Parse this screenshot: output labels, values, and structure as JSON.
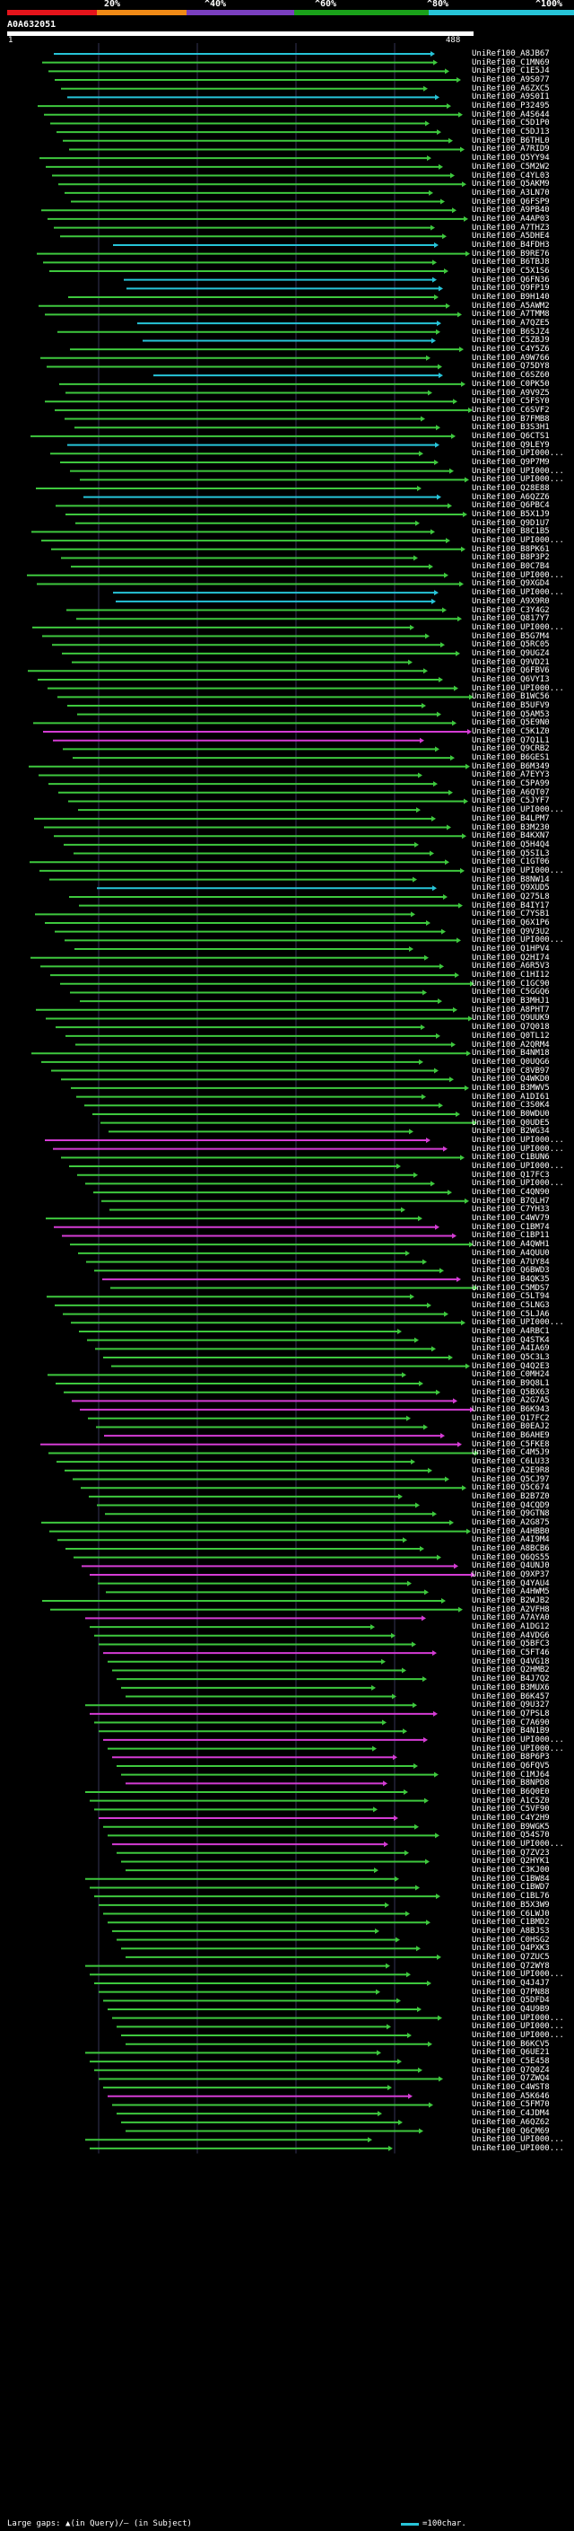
{
  "header": {
    "scale_labels": [
      "20%",
      "^40%",
      "^60%",
      "^80%",
      "^100%"
    ],
    "band_colors": [
      "#e5141b",
      "#f08a16",
      "#7a3fbf",
      "#1aa11a",
      "#27c4d8"
    ],
    "query_id": "A0A632051",
    "query_start": "1",
    "query_end": "488"
  },
  "colors": {
    "green": "#3ec83e",
    "magenta": "#d43cd4",
    "cyan": "#27c4d8"
  },
  "hits": [
    {
      "label": "UniRef100_A8JB67",
      "color": "cyan"
    },
    {
      "label": "UniRef100_C1MN69",
      "color": "green"
    },
    {
      "label": "UniRef100_C1E5J4",
      "color": "green"
    },
    {
      "label": "UniRef100_A9S077",
      "color": "green"
    },
    {
      "label": "UniRef100_A6ZXC5",
      "color": "green"
    },
    {
      "label": "UniRef100_A9S0I1",
      "color": "cyan"
    },
    {
      "label": "UniRef100_P32495",
      "color": "green"
    },
    {
      "label": "UniRef100_A4S644",
      "color": "green"
    },
    {
      "label": "UniRef100_C5D1P0",
      "color": "green"
    },
    {
      "label": "UniRef100_C5DJ13",
      "color": "green"
    },
    {
      "label": "UniRef100_B6THL0",
      "color": "green"
    },
    {
      "label": "UniRef100_A7RID9",
      "color": "green"
    },
    {
      "label": "UniRef100_Q5YY94",
      "color": "green"
    },
    {
      "label": "UniRef100_C5M2W2",
      "color": "green"
    },
    {
      "label": "UniRef100_C4YL03",
      "color": "green"
    },
    {
      "label": "UniRef100_Q5AKM9",
      "color": "green"
    },
    {
      "label": "UniRef100_A3LN70",
      "color": "green"
    },
    {
      "label": "UniRef100_Q6FSP9",
      "color": "green"
    },
    {
      "label": "UniRef100_A9PB40",
      "color": "green"
    },
    {
      "label": "UniRef100_A4AP03",
      "color": "green"
    },
    {
      "label": "UniRef100_A7THZ3",
      "color": "green"
    },
    {
      "label": "UniRef100_A5DHE4",
      "color": "green"
    },
    {
      "label": "UniRef100_B4FDH3",
      "color": "cyan"
    },
    {
      "label": "UniRef100_B9RE76",
      "color": "green"
    },
    {
      "label": "UniRef100_B6TBJ8",
      "color": "green"
    },
    {
      "label": "UniRef100_C5X1S6",
      "color": "green"
    },
    {
      "label": "UniRef100_Q6FN36",
      "color": "cyan"
    },
    {
      "label": "UniRef100_Q9FP19",
      "color": "cyan"
    },
    {
      "label": "UniRef100_B9H140",
      "color": "green"
    },
    {
      "label": "UniRef100_A5AWM2",
      "color": "green"
    },
    {
      "label": "UniRef100_A7TMM8",
      "color": "green"
    },
    {
      "label": "UniRef100_A7QZE5",
      "color": "cyan"
    },
    {
      "label": "UniRef100_B6SJZ4",
      "color": "green"
    },
    {
      "label": "UniRef100_C5ZBJ9",
      "color": "cyan"
    },
    {
      "label": "UniRef100_C4Y5Z6",
      "color": "green"
    },
    {
      "label": "UniRef100_A9W766",
      "color": "green"
    },
    {
      "label": "UniRef100_Q75DY8",
      "color": "green"
    },
    {
      "label": "UniRef100_C6SZ60",
      "color": "cyan"
    },
    {
      "label": "UniRef100_C0PK50",
      "color": "green"
    },
    {
      "label": "UniRef100_A9V9Z5",
      "color": "green"
    },
    {
      "label": "UniRef100_C5FSY0",
      "color": "green"
    },
    {
      "label": "UniRef100_C6SVF2",
      "color": "green"
    },
    {
      "label": "UniRef100_B7FMB8",
      "color": "green"
    },
    {
      "label": "UniRef100_B3S3H1",
      "color": "green"
    },
    {
      "label": "UniRef100_Q6CTS1",
      "color": "green"
    },
    {
      "label": "UniRef100_Q9LEY9",
      "color": "cyan"
    },
    {
      "label": "UniRef100_UPI000...",
      "color": "green"
    },
    {
      "label": "UniRef100_Q9P7M9",
      "color": "green"
    },
    {
      "label": "UniRef100_UPI000...",
      "color": "green"
    },
    {
      "label": "UniRef100_UPI000...",
      "color": "green"
    },
    {
      "label": "UniRef100_Q28E88",
      "color": "green"
    },
    {
      "label": "UniRef100_A6QZZ6",
      "color": "cyan"
    },
    {
      "label": "UniRef100_Q6PBC4",
      "color": "green"
    },
    {
      "label": "UniRef100_B5X1J9",
      "color": "green"
    },
    {
      "label": "UniRef100_Q9D1U7",
      "color": "green"
    },
    {
      "label": "UniRef100_B8C1B5",
      "color": "green"
    },
    {
      "label": "UniRef100_UPI000...",
      "color": "green"
    },
    {
      "label": "UniRef100_B8PK61",
      "color": "green"
    },
    {
      "label": "UniRef100_B8P3P2",
      "color": "green"
    },
    {
      "label": "UniRef100_B0C7B4",
      "color": "green"
    },
    {
      "label": "UniRef100_UPI000...",
      "color": "green"
    },
    {
      "label": "UniRef100_Q9XGD4",
      "color": "green"
    },
    {
      "label": "UniRef100_UPI000...",
      "color": "cyan"
    },
    {
      "label": "UniRef100_A9X9R0",
      "color": "cyan"
    },
    {
      "label": "UniRef100_C3Y4G2",
      "color": "green"
    },
    {
      "label": "UniRef100_Q817Y7",
      "color": "green"
    },
    {
      "label": "UniRef100_UPI000...",
      "color": "green"
    },
    {
      "label": "UniRef100_B5G7M4",
      "color": "green"
    },
    {
      "label": "UniRef100_Q5RC05",
      "color": "green"
    },
    {
      "label": "UniRef100_Q9UGZ4",
      "color": "green"
    },
    {
      "label": "UniRef100_Q9VD21",
      "color": "green"
    },
    {
      "label": "UniRef100_Q6FBV6",
      "color": "green"
    },
    {
      "label": "UniRef100_Q6VYI3",
      "color": "green"
    },
    {
      "label": "UniRef100_UPI000...",
      "color": "green"
    },
    {
      "label": "UniRef100_B1WC56",
      "color": "green"
    },
    {
      "label": "UniRef100_B5UFV9",
      "color": "green"
    },
    {
      "label": "UniRef100_Q5AM53",
      "color": "green"
    },
    {
      "label": "UniRef100_Q5E9N0",
      "color": "green"
    },
    {
      "label": "UniRef100_C5K1Z0",
      "color": "magenta"
    },
    {
      "label": "UniRef100_Q7Q1L1",
      "color": "magenta"
    },
    {
      "label": "UniRef100_Q9CRB2",
      "color": "green"
    },
    {
      "label": "UniRef100_B6GES1",
      "color": "green"
    },
    {
      "label": "UniRef100_B6M349",
      "color": "green"
    },
    {
      "label": "UniRef100_A7EYY3",
      "color": "green"
    },
    {
      "label": "UniRef100_C5PA99",
      "color": "green"
    },
    {
      "label": "UniRef100_A6QT07",
      "color": "green"
    },
    {
      "label": "UniRef100_C5JYF7",
      "color": "green"
    },
    {
      "label": "UniRef100_UPI000...",
      "color": "green"
    },
    {
      "label": "UniRef100_B4LPM7",
      "color": "green"
    },
    {
      "label": "UniRef100_B3M230",
      "color": "green"
    },
    {
      "label": "UniRef100_B4KXN7",
      "color": "green"
    },
    {
      "label": "UniRef100_Q5H4Q4",
      "color": "green"
    },
    {
      "label": "UniRef100_Q5SIL3",
      "color": "green"
    },
    {
      "label": "UniRef100_C1GT06",
      "color": "green"
    },
    {
      "label": "UniRef100_UPI000...",
      "color": "green"
    },
    {
      "label": "UniRef100_B8NW14",
      "color": "green"
    },
    {
      "label": "UniRef100_Q9XUD5",
      "color": "cyan"
    },
    {
      "label": "UniRef100_Q275L8",
      "color": "green"
    },
    {
      "label": "UniRef100_B4IY17",
      "color": "green"
    },
    {
      "label": "UniRef100_C7YSB1",
      "color": "green"
    },
    {
      "label": "UniRef100_Q6X1P6",
      "color": "green"
    },
    {
      "label": "UniRef100_Q9V3U2",
      "color": "green"
    },
    {
      "label": "UniRef100_UPI000...",
      "color": "green"
    },
    {
      "label": "UniRef100_Q1HPV4",
      "color": "green"
    },
    {
      "label": "UniRef100_Q2HI74",
      "color": "green"
    },
    {
      "label": "UniRef100_A6R5V3",
      "color": "green"
    },
    {
      "label": "UniRef100_C1HI12",
      "color": "green"
    },
    {
      "label": "UniRef100_C1GC90",
      "color": "green"
    },
    {
      "label": "UniRef100_C5GGQ6",
      "color": "green"
    },
    {
      "label": "UniRef100_B3MHJ1",
      "color": "green"
    },
    {
      "label": "UniRef100_A8PHT7",
      "color": "green"
    },
    {
      "label": "UniRef100_Q9UUK9",
      "color": "green"
    },
    {
      "label": "UniRef100_Q7Q018",
      "color": "green"
    },
    {
      "label": "UniRef100_Q0TL12",
      "color": "green"
    },
    {
      "label": "UniRef100_A2QRM4",
      "color": "green"
    },
    {
      "label": "UniRef100_B4NM18",
      "color": "green"
    },
    {
      "label": "UniRef100_Q0UQG6",
      "color": "green"
    },
    {
      "label": "UniRef100_C8VB97",
      "color": "green"
    },
    {
      "label": "UniRef100_Q4WKD0",
      "color": "green"
    },
    {
      "label": "UniRef100_B3MWV5",
      "color": "green"
    },
    {
      "label": "UniRef100_A1DI61",
      "color": "green"
    },
    {
      "label": "UniRef100_C3S0K4",
      "color": "green"
    },
    {
      "label": "UniRef100_B0WDU0",
      "color": "green"
    },
    {
      "label": "UniRef100_Q0UDE5",
      "color": "green"
    },
    {
      "label": "UniRef100_B2WG34",
      "color": "green"
    },
    {
      "label": "UniRef100_UPI000...",
      "color": "magenta"
    },
    {
      "label": "UniRef100_UPI000...",
      "color": "magenta"
    },
    {
      "label": "UniRef100_C1BUN6",
      "color": "green"
    },
    {
      "label": "UniRef100_UPI000...",
      "color": "green"
    },
    {
      "label": "UniRef100_Q17FC3",
      "color": "green"
    },
    {
      "label": "UniRef100_UPI000...",
      "color": "green"
    },
    {
      "label": "UniRef100_C4QN90",
      "color": "green"
    },
    {
      "label": "UniRef100_B7QLH7",
      "color": "green"
    },
    {
      "label": "UniRef100_C7YH33",
      "color": "green"
    },
    {
      "label": "UniRef100_C4WV79",
      "color": "green"
    },
    {
      "label": "UniRef100_C1BM74",
      "color": "magenta"
    },
    {
      "label": "UniRef100_C1BP11",
      "color": "magenta"
    },
    {
      "label": "UniRef100_A4QWH1",
      "color": "green"
    },
    {
      "label": "UniRef100_A4QUU0",
      "color": "green"
    },
    {
      "label": "UniRef100_A7UY84",
      "color": "green"
    },
    {
      "label": "UniRef100_Q6BWD3",
      "color": "green"
    },
    {
      "label": "UniRef100_B4QK35",
      "color": "magenta"
    },
    {
      "label": "UniRef100_C5MDS7",
      "color": "green"
    },
    {
      "label": "UniRef100_C5LT94",
      "color": "green"
    },
    {
      "label": "UniRef100_C5LNG3",
      "color": "green"
    },
    {
      "label": "UniRef100_C5LJA6",
      "color": "green"
    },
    {
      "label": "UniRef100_UPI000...",
      "color": "green"
    },
    {
      "label": "UniRef100_A4RBC1",
      "color": "green"
    },
    {
      "label": "UniRef100_Q4STK4",
      "color": "green"
    },
    {
      "label": "UniRef100_A4IA69",
      "color": "green"
    },
    {
      "label": "UniRef100_Q5C3L3",
      "color": "green"
    },
    {
      "label": "UniRef100_Q4Q2E3",
      "color": "green"
    },
    {
      "label": "UniRef100_C0MH24",
      "color": "green"
    },
    {
      "label": "UniRef100_B9Q8L1",
      "color": "green"
    },
    {
      "label": "UniRef100_Q5BX63",
      "color": "green"
    },
    {
      "label": "UniRef100_A2G7A5",
      "color": "magenta"
    },
    {
      "label": "UniRef100_B6K943",
      "color": "magenta"
    },
    {
      "label": "UniRef100_Q17FC2",
      "color": "green"
    },
    {
      "label": "UniRef100_B0EAJ2",
      "color": "green"
    },
    {
      "label": "UniRef100_B6AHE9",
      "color": "magenta"
    },
    {
      "label": "UniRef100_C5FKE8",
      "color": "magenta"
    },
    {
      "label": "UniRef100_C4M5J9",
      "color": "green"
    },
    {
      "label": "UniRef100_C6LU33",
      "color": "green"
    },
    {
      "label": "UniRef100_A2E9R8",
      "color": "green"
    },
    {
      "label": "UniRef100_Q5CJ97",
      "color": "green"
    },
    {
      "label": "UniRef100_Q5C674",
      "color": "green"
    },
    {
      "label": "UniRef100_B2B7Z0",
      "color": "green"
    },
    {
      "label": "UniRef100_Q4CQD9",
      "color": "green"
    },
    {
      "label": "UniRef100_Q9GTN8",
      "color": "green"
    },
    {
      "label": "UniRef100_A2G875",
      "color": "green"
    },
    {
      "label": "UniRef100_A4HBB0",
      "color": "green"
    },
    {
      "label": "UniRef100_A4I9M4",
      "color": "green"
    },
    {
      "label": "UniRef100_A8BCB6",
      "color": "green"
    },
    {
      "label": "UniRef100_Q6QS55",
      "color": "green"
    },
    {
      "label": "UniRef100_Q4UNJ0",
      "color": "magenta"
    },
    {
      "label": "UniRef100_Q9XP37",
      "color": "magenta"
    },
    {
      "label": "UniRef100_Q4YAU4",
      "color": "green"
    },
    {
      "label": "UniRef100_A4HWM5",
      "color": "green"
    },
    {
      "label": "UniRef100_B2WJB2",
      "color": "green"
    },
    {
      "label": "UniRef100_A2VFH8",
      "color": "green"
    },
    {
      "label": "UniRef100_A7AYA0",
      "color": "magenta"
    },
    {
      "label": "UniRef100_A1DG12",
      "color": "green"
    },
    {
      "label": "UniRef100_A4VDG6",
      "color": "green"
    },
    {
      "label": "UniRef100_Q5BFC3",
      "color": "green"
    },
    {
      "label": "UniRef100_C5FT46",
      "color": "magenta"
    },
    {
      "label": "UniRef100_Q4VG18",
      "color": "green"
    },
    {
      "label": "UniRef100_Q2HMB2",
      "color": "green"
    },
    {
      "label": "UniRef100_B4J7Q2",
      "color": "green"
    },
    {
      "label": "UniRef100_B3MUX6",
      "color": "green"
    },
    {
      "label": "UniRef100_B6K457",
      "color": "green"
    },
    {
      "label": "UniRef100_Q9U327",
      "color": "green"
    },
    {
      "label": "UniRef100_Q7PSL8",
      "color": "magenta"
    },
    {
      "label": "UniRef100_C7A690",
      "color": "green"
    },
    {
      "label": "UniRef100_B4N1B9",
      "color": "green"
    },
    {
      "label": "UniRef100_UPI000...",
      "color": "magenta"
    },
    {
      "label": "UniRef100_UPI000...",
      "color": "green"
    },
    {
      "label": "UniRef100_B8P6P3",
      "color": "magenta"
    },
    {
      "label": "UniRef100_Q6FQV5",
      "color": "green"
    },
    {
      "label": "UniRef100_C1MJ64",
      "color": "green"
    },
    {
      "label": "UniRef100_B8NPD8",
      "color": "magenta"
    },
    {
      "label": "UniRef100_B6Q0E0",
      "color": "green"
    },
    {
      "label": "UniRef100_A1C5Z0",
      "color": "green"
    },
    {
      "label": "UniRef100_C5VF90",
      "color": "green"
    },
    {
      "label": "UniRef100_C4Y2H9",
      "color": "magenta"
    },
    {
      "label": "UniRef100_B9WGK5",
      "color": "green"
    },
    {
      "label": "UniRef100_Q54S70",
      "color": "green"
    },
    {
      "label": "UniRef100_UPI000...",
      "color": "magenta"
    },
    {
      "label": "UniRef100_Q7ZV23",
      "color": "green"
    },
    {
      "label": "UniRef100_Q2HYK1",
      "color": "green"
    },
    {
      "label": "UniRef100_C3KJ00",
      "color": "green"
    },
    {
      "label": "UniRef100_C1BW84",
      "color": "green"
    },
    {
      "label": "UniRef100_C1BWD7",
      "color": "green"
    },
    {
      "label": "UniRef100_C1BL76",
      "color": "green"
    },
    {
      "label": "UniRef100_B5X3W9",
      "color": "green"
    },
    {
      "label": "UniRef100_C6LWJ0",
      "color": "green"
    },
    {
      "label": "UniRef100_C1BMD2",
      "color": "green"
    },
    {
      "label": "UniRef100_A8BJS3",
      "color": "green"
    },
    {
      "label": "UniRef100_C0HSG2",
      "color": "green"
    },
    {
      "label": "UniRef100_Q4PXK3",
      "color": "green"
    },
    {
      "label": "UniRef100_Q7ZUC5",
      "color": "green"
    },
    {
      "label": "UniRef100_Q72WY8",
      "color": "green"
    },
    {
      "label": "UniRef100_UPI000...",
      "color": "green"
    },
    {
      "label": "UniRef100_Q4J4J7",
      "color": "green"
    },
    {
      "label": "UniRef100_Q7PN88",
      "color": "green"
    },
    {
      "label": "UniRef100_Q5DFD4",
      "color": "green"
    },
    {
      "label": "UniRef100_Q4U9B9",
      "color": "green"
    },
    {
      "label": "UniRef100_UPI000...",
      "color": "green"
    },
    {
      "label": "UniRef100_UPI000...",
      "color": "green"
    },
    {
      "label": "UniRef100_UPI000...",
      "color": "green"
    },
    {
      "label": "UniRef100_B6KCV5",
      "color": "green"
    },
    {
      "label": "UniRef100_Q6UE21",
      "color": "green"
    },
    {
      "label": "UniRef100_C5E458",
      "color": "green"
    },
    {
      "label": "UniRef100_Q7Q0Z4",
      "color": "green"
    },
    {
      "label": "UniRef100_Q7ZWQ4",
      "color": "green"
    },
    {
      "label": "UniRef100_C4WST8",
      "color": "green"
    },
    {
      "label": "UniRef100_A5K646",
      "color": "magenta"
    },
    {
      "label": "UniRef100_C5FM70",
      "color": "green"
    },
    {
      "label": "UniRef100_C4JDM4",
      "color": "green"
    },
    {
      "label": "UniRef100_A6QZ62",
      "color": "green"
    },
    {
      "label": "UniRef100_Q6CM69",
      "color": "green"
    },
    {
      "label": "UniRef100_UPI000...",
      "color": "green"
    },
    {
      "label": "UniRef100_UPI000...",
      "color": "green"
    }
  ],
  "legend": {
    "text": "Large gaps: ▲(in Query)/– (in Subject)",
    "key_text": "=100char."
  }
}
